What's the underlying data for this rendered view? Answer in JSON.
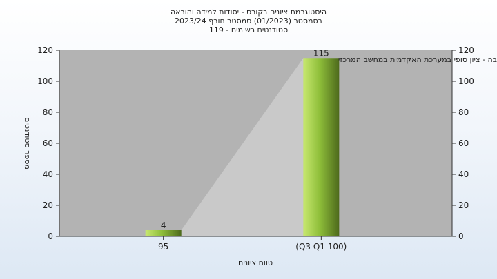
{
  "title_lines": [
    "היסטוגרמת ציונים בקורס - יסודות למידה והוראה",
    "בסמסטר  (01/2023)  סמסטר חורף 2023/24",
    "סטודנטים רשומים - 119"
  ],
  "chart_data": {
    "type": "bar",
    "categories": [
      "95",
      "(Q3 Q1 100)"
    ],
    "values": [
      4,
      115
    ],
    "data_labels": [
      "4",
      "115"
    ],
    "annotation": "בחשיבה - ציון סופי במערכת האקדמית במחשב המרכזי",
    "xlabel": "טווח ציונים",
    "ylabel": "מספר סטודנטים",
    "ylim": [
      0,
      120
    ],
    "yticks": [
      0,
      20,
      40,
      60,
      80,
      100,
      120
    ],
    "secondary_y_axis": true,
    "grid": false,
    "legend": "none",
    "colors": {
      "bar_light": "#c8e870",
      "bar_mid": "#8fbf3a",
      "bar_dark": "#4d6a1c",
      "plot_bg": "#b3b3b3",
      "shadow": "#c9c9c9"
    }
  }
}
